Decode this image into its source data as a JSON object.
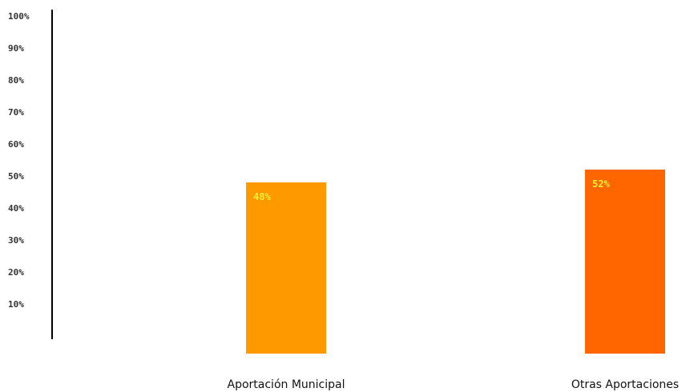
{
  "chart_data": {
    "type": "bar",
    "title": "",
    "xlabel": "",
    "ylabel": "",
    "categories": [
      "Aportación Municipal",
      "Otras Aportaciones"
    ],
    "values": [
      48,
      52
    ],
    "data_labels": [
      "48%",
      "52%"
    ],
    "colors": [
      "#ff9900",
      "#ff6600"
    ],
    "data_label_color": "#ffee33",
    "ylim": [
      0,
      100
    ],
    "yticks": [
      10,
      20,
      30,
      40,
      50,
      60,
      70,
      80,
      90,
      100
    ],
    "ytick_labels": [
      "10%",
      "20%",
      "30%",
      "40%",
      "50%",
      "60%",
      "70%",
      "80%",
      "90%",
      "100%"
    ],
    "grid": false,
    "legend": "none"
  }
}
